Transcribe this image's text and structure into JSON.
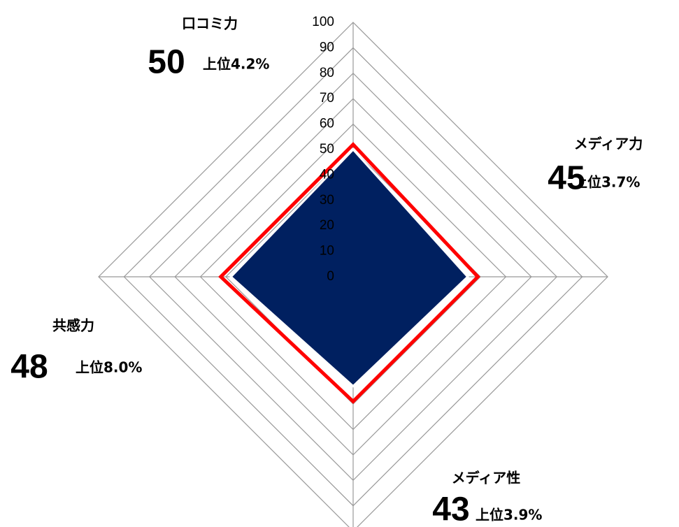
{
  "chart_data": {
    "type": "radar",
    "categories": [
      "口コミ力",
      "メディア力",
      "メディア性",
      "共感力"
    ],
    "series": [
      {
        "color": "#002060",
        "values": [
          50,
          45,
          43,
          48
        ]
      },
      {
        "color": "#ff0000",
        "values": [
          52,
          49,
          49,
          52
        ]
      }
    ],
    "ranks": [
      "上位4.2%",
      "上位3.7%",
      "上位3.9%",
      "上位8.0%"
    ],
    "ylim": [
      0,
      100
    ],
    "yticks": [
      0,
      10,
      20,
      30,
      40,
      50,
      60,
      70,
      80,
      90,
      100
    ],
    "grid": true
  }
}
